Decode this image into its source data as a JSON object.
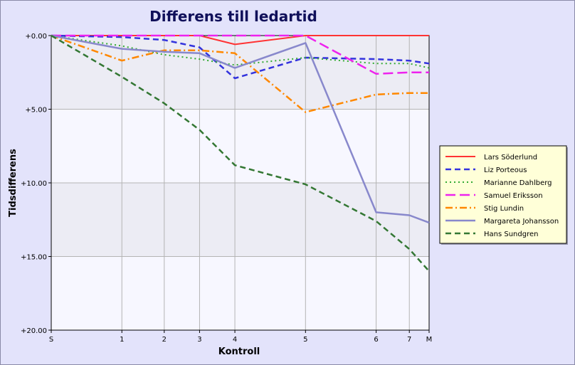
{
  "chart_data": {
    "type": "line",
    "title": "Differens till ledartid",
    "xlabel": "Kontroll",
    "ylabel": "Tidsdifferens",
    "x_ticks": [
      "S",
      "1",
      "2",
      "3",
      "4",
      "5",
      "6",
      "7",
      "M"
    ],
    "x_positions": [
      0,
      1,
      1.6,
      2.1,
      2.6,
      3.6,
      4.6,
      5.07,
      5.35
    ],
    "xlim": [
      0,
      5.35
    ],
    "ylim": [
      0,
      20
    ],
    "y_inverted": true,
    "y_ticks": [
      0,
      5,
      10,
      15,
      20
    ],
    "y_tick_labels": [
      "+0.00",
      "+5.00",
      "+10.00",
      "+15.00",
      "+20.00"
    ],
    "grid": true,
    "legend_position": "right",
    "series": [
      {
        "name": "Lars Söderlund",
        "color": "#ff3333",
        "dash": "solid",
        "values": [
          0,
          0,
          0,
          0,
          0.6,
          0,
          0,
          0,
          0
        ]
      },
      {
        "name": "Liz Porteous",
        "color": "#3333dd",
        "dash": "dashed",
        "values": [
          0,
          0.1,
          0.3,
          0.8,
          2.9,
          1.5,
          1.6,
          1.7,
          1.9
        ]
      },
      {
        "name": "Marianne Dahlberg",
        "color": "#33aa33",
        "dash": "dotted",
        "values": [
          0,
          0.7,
          1.3,
          1.6,
          2.0,
          1.5,
          1.9,
          1.9,
          2.2
        ]
      },
      {
        "name": "Samuel Eriksson",
        "color": "#ee22ee",
        "dash": "longdash",
        "values": [
          0,
          0,
          0,
          0,
          0,
          0,
          2.6,
          2.5,
          2.5
        ]
      },
      {
        "name": "Stig Lundin",
        "color": "#ff8800",
        "dash": "dashdot",
        "values": [
          0,
          1.7,
          1.0,
          1.0,
          1.2,
          5.2,
          4.0,
          3.9,
          3.9
        ]
      },
      {
        "name": "Margareta Johansson",
        "color": "#8888cc",
        "dash": "solid-thick",
        "values": [
          0,
          0.9,
          1.1,
          1.2,
          2.2,
          0.5,
          12.0,
          12.2,
          12.7
        ]
      },
      {
        "name": "Hans Sundgren",
        "color": "#337733",
        "dash": "dashed",
        "values": [
          0,
          2.8,
          4.6,
          6.4,
          8.8,
          10.1,
          12.6,
          14.5,
          16.0
        ]
      }
    ]
  }
}
